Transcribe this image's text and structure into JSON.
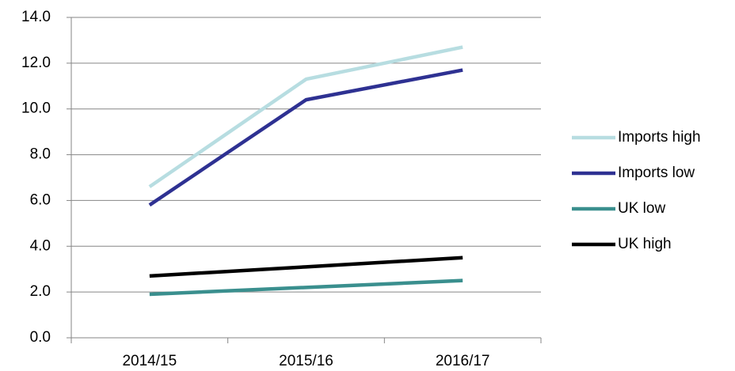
{
  "chart_data": {
    "type": "line",
    "categories": [
      "2014/15",
      "2015/16",
      "2016/17"
    ],
    "series": [
      {
        "name": "Imports high",
        "color": "#b7dde1",
        "values": [
          6.6,
          11.3,
          12.7
        ]
      },
      {
        "name": "Imports low",
        "color": "#2e3192",
        "values": [
          5.8,
          10.4,
          11.7
        ]
      },
      {
        "name": "UK low",
        "color": "#3a8f8e",
        "values": [
          1.9,
          2.2,
          2.5
        ]
      },
      {
        "name": "UK high",
        "color": "#000000",
        "values": [
          2.7,
          3.1,
          3.5
        ]
      }
    ],
    "ylim": [
      0,
      14
    ],
    "yticks": [
      {
        "value": 0,
        "label": "0.0"
      },
      {
        "value": 2,
        "label": "2.0"
      },
      {
        "value": 4,
        "label": "4.0"
      },
      {
        "value": 6,
        "label": "6.0"
      },
      {
        "value": 8,
        "label": "8.0"
      },
      {
        "value": 10,
        "label": "10.0"
      },
      {
        "value": 12,
        "label": "12.0"
      },
      {
        "value": 14,
        "label": "14.0"
      }
    ],
    "grid": true,
    "legend": "right"
  }
}
